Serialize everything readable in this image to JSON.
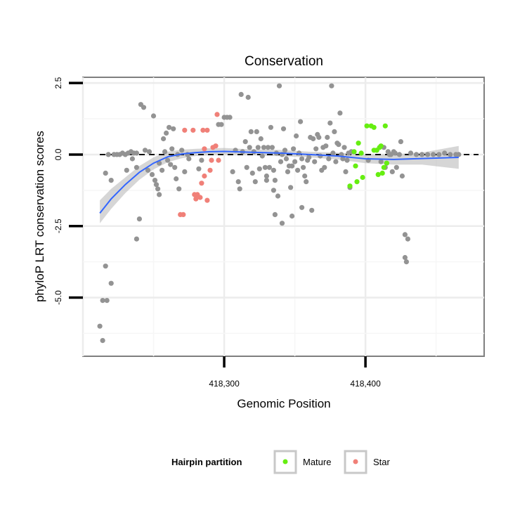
{
  "chart_data": {
    "type": "scatter",
    "title": "Conservation",
    "xlabel": "Genomic Position",
    "ylabel": "phyloP LRT conservation scores",
    "xlim": [
      418200,
      418484
    ],
    "ylim": [
      -7.05,
      2.7
    ],
    "x_ticks": [
      418300,
      418400
    ],
    "x_tick_labels": [
      "418,300",
      "418,400"
    ],
    "y_ticks": [
      2.5,
      0.0,
      -2.5,
      -5.0
    ],
    "y_tick_labels": [
      "2.5",
      "0.0",
      "-2.5",
      "-5.0"
    ],
    "grid": true,
    "reference_line": {
      "y": 0,
      "style": "dashed",
      "color": "#000000"
    },
    "legend": {
      "title": "Hairpin partition",
      "position": "bottom",
      "entries": [
        {
          "label": "Mature",
          "color": "#66EE11"
        },
        {
          "label": "Star",
          "color": "#F08078"
        }
      ]
    },
    "colors": {
      "background": "#000000",
      "mature": "#66EE11",
      "star": "#F08078",
      "smooth": "#3366FF",
      "band": "#BBBBBB"
    },
    "series": [
      {
        "points": [
          [
            418212,
            -6.0
          ],
          [
            418214,
            -6.5
          ],
          [
            418214,
            -5.1
          ],
          [
            418217,
            -5.1
          ],
          [
            418216,
            -3.9
          ],
          [
            418220,
            -4.5
          ],
          [
            418216,
            -0.65
          ],
          [
            418218,
            0.0
          ],
          [
            418220,
            -0.9
          ],
          [
            418222,
            0.0
          ],
          [
            418224,
            0.0
          ],
          [
            418226,
            0.0
          ],
          [
            418228,
            0.05
          ],
          [
            418230,
            0.0
          ],
          [
            418232,
            0.05
          ],
          [
            418234,
            0.1
          ],
          [
            418236,
            0.05
          ],
          [
            418238,
            0.05
          ],
          [
            418231,
            -0.55
          ],
          [
            418235,
            -0.15
          ],
          [
            418238,
            -0.45
          ],
          [
            418238,
            -2.95
          ],
          [
            418240,
            -2.25
          ],
          [
            418241,
            1.75
          ],
          [
            418243,
            1.65
          ],
          [
            418244,
            0.15
          ],
          [
            418246,
            -0.55
          ],
          [
            418247,
            0.1
          ],
          [
            418249,
            -0.7
          ],
          [
            418250,
            1.35
          ],
          [
            418251,
            -0.9
          ],
          [
            418252,
            -1.05
          ],
          [
            418253,
            -1.2
          ],
          [
            418254,
            -1.4
          ],
          [
            418254,
            -0.3
          ],
          [
            418256,
            -0.55
          ],
          [
            418257,
            0.55
          ],
          [
            418258,
            0.1
          ],
          [
            418259,
            0.75
          ],
          [
            418260,
            -0.2
          ],
          [
            418261,
            0.95
          ],
          [
            418262,
            -0.35
          ],
          [
            418263,
            0.2
          ],
          [
            418264,
            0.9
          ],
          [
            418265,
            -0.45
          ],
          [
            418266,
            -0.85
          ],
          [
            418267,
            0.0
          ],
          [
            418268,
            -1.2
          ],
          [
            418270,
            0.15
          ],
          [
            418272,
            -0.6
          ],
          [
            418274,
            0.0
          ],
          [
            418275,
            -0.15
          ],
          [
            418282,
            -0.5
          ],
          [
            418284,
            -0.2
          ],
          [
            418296,
            1.05
          ],
          [
            418298,
            1.05
          ],
          [
            418300,
            1.3
          ],
          [
            418302,
            1.3
          ],
          [
            418304,
            1.3
          ],
          [
            418306,
            -0.6
          ],
          [
            418308,
            0.15
          ],
          [
            418310,
            -0.95
          ],
          [
            418311,
            -1.2
          ],
          [
            418312,
            2.1
          ],
          [
            418313,
            0.1
          ],
          [
            418315,
            0.45
          ],
          [
            418316,
            -0.45
          ],
          [
            418317,
            2.0
          ],
          [
            418318,
            0.25
          ],
          [
            418319,
            0.8
          ],
          [
            418320,
            -0.65
          ],
          [
            418321,
            0.1
          ],
          [
            418322,
            -0.95
          ],
          [
            418323,
            0.8
          ],
          [
            418324,
            0.25
          ],
          [
            418325,
            -0.5
          ],
          [
            418326,
            0.55
          ],
          [
            418327,
            -0.05
          ],
          [
            418328,
            0.25
          ],
          [
            418329,
            -0.45
          ],
          [
            418330,
            -0.75
          ],
          [
            418331,
            0.25
          ],
          [
            418332,
            -0.45
          ],
          [
            418333,
            0.95
          ],
          [
            418334,
            0.25
          ],
          [
            418335,
            -0.55
          ],
          [
            418336,
            -0.9
          ],
          [
            418337,
            0.05
          ],
          [
            418338,
            -1.45
          ],
          [
            418339,
            2.4
          ],
          [
            418340,
            -0.25
          ],
          [
            418341,
            0.0
          ],
          [
            418342,
            0.9
          ],
          [
            418343,
            0.15
          ],
          [
            418344,
            -0.15
          ],
          [
            418345,
            -0.6
          ],
          [
            418346,
            -0.4
          ],
          [
            418347,
            -1.15
          ],
          [
            418348,
            -0.4
          ],
          [
            418349,
            0.2
          ],
          [
            418350,
            -0.25
          ],
          [
            418351,
            0.65
          ],
          [
            418352,
            -0.55
          ],
          [
            418353,
            0.05
          ],
          [
            418354,
            1.15
          ],
          [
            418355,
            -0.15
          ],
          [
            418356,
            -0.45
          ],
          [
            418357,
            -0.75
          ],
          [
            418358,
            -0.95
          ],
          [
            418359,
            -0.2
          ],
          [
            418360,
            -0.1
          ],
          [
            418361,
            0.6
          ],
          [
            418362,
            -1.95
          ],
          [
            418363,
            0.55
          ],
          [
            418364,
            -0.25
          ],
          [
            418365,
            0.2
          ],
          [
            418366,
            0.7
          ],
          [
            418367,
            0.6
          ],
          [
            418368,
            -0.05
          ],
          [
            418369,
            -0.55
          ],
          [
            418370,
            0.25
          ],
          [
            418371,
            -0.45
          ],
          [
            418372,
            0.3
          ],
          [
            418373,
            0.6
          ],
          [
            418374,
            -0.15
          ],
          [
            418375,
            1.1
          ],
          [
            418376,
            2.4
          ],
          [
            418377,
            0.05
          ],
          [
            418378,
            0.8
          ],
          [
            418379,
            -0.25
          ],
          [
            418380,
            0.4
          ],
          [
            418381,
            0.35
          ],
          [
            418382,
            1.45
          ],
          [
            418383,
            0.0
          ],
          [
            418384,
            -0.15
          ],
          [
            418385,
            0.25
          ],
          [
            418386,
            -0.6
          ],
          [
            418387,
            -0.2
          ],
          [
            418388,
            0.05
          ],
          [
            418389,
            -1.15
          ],
          [
            418390,
            0.1
          ],
          [
            418335,
            -1.25
          ],
          [
            418336,
            -2.1
          ],
          [
            418341,
            -2.4
          ],
          [
            418355,
            -1.85
          ],
          [
            418330,
            -0.9
          ],
          [
            418348,
            -2.15
          ],
          [
            418402,
            -0.2
          ],
          [
            418408,
            0.15
          ],
          [
            418411,
            -0.25
          ],
          [
            418413,
            0.25
          ],
          [
            418414,
            -0.45
          ],
          [
            418415,
            -0.3
          ],
          [
            418416,
            0.1
          ],
          [
            418417,
            0.0
          ],
          [
            418418,
            0.0
          ],
          [
            418419,
            -0.6
          ],
          [
            418420,
            0.1
          ],
          [
            418421,
            0.05
          ],
          [
            418422,
            -0.45
          ],
          [
            418424,
            0.0
          ],
          [
            418425,
            0.45
          ],
          [
            418426,
            -0.75
          ],
          [
            418428,
            -2.8
          ],
          [
            418428,
            -3.6
          ],
          [
            418429,
            -3.75
          ],
          [
            418430,
            -2.95
          ],
          [
            418432,
            0.05
          ],
          [
            418436,
            0.0
          ],
          [
            418440,
            0.0
          ],
          [
            418444,
            0.0
          ],
          [
            418448,
            0.0
          ],
          [
            418452,
            0.0
          ],
          [
            418456,
            0.05
          ],
          [
            418460,
            0.0
          ],
          [
            418464,
            0.0
          ],
          [
            418466,
            0.0
          ]
        ]
      },
      {
        "name": "Star",
        "points": [
          [
            418269,
            -2.1
          ],
          [
            418271,
            -2.1
          ],
          [
            418272,
            0.85
          ],
          [
            418278,
            0.85
          ],
          [
            418279,
            -1.4
          ],
          [
            418280,
            -1.55
          ],
          [
            418281,
            -1.4
          ],
          [
            418283,
            -1.5
          ],
          [
            418284,
            -1.0
          ],
          [
            418285,
            0.85
          ],
          [
            418286,
            -0.75
          ],
          [
            418286,
            0.2
          ],
          [
            418288,
            0.85
          ],
          [
            418288,
            -1.6
          ],
          [
            418290,
            -0.55
          ],
          [
            418291,
            -0.2
          ],
          [
            418292,
            0.25
          ],
          [
            418294,
            0.3
          ],
          [
            418295,
            1.4
          ],
          [
            418296,
            -0.2
          ]
        ]
      },
      {
        "name": "Mature",
        "points": [
          [
            418389,
            -1.1
          ],
          [
            418392,
            0.1
          ],
          [
            418393,
            -0.4
          ],
          [
            418394,
            -0.95
          ],
          [
            418395,
            0.4
          ],
          [
            418397,
            0.05
          ],
          [
            418398,
            -0.8
          ],
          [
            418401,
            1.0
          ],
          [
            418404,
            1.0
          ],
          [
            418406,
            0.95
          ],
          [
            418406,
            0.15
          ],
          [
            418408,
            0.15
          ],
          [
            418409,
            -0.7
          ],
          [
            418410,
            0.25
          ],
          [
            418411,
            0.3
          ],
          [
            418412,
            -0.65
          ],
          [
            418413,
            -0.45
          ],
          [
            418414,
            1.0
          ],
          [
            418415,
            -0.3
          ]
        ]
      }
    ],
    "smooth_curve": [
      [
        418212,
        -2.05
      ],
      [
        418220,
        -1.55
      ],
      [
        418230,
        -1.05
      ],
      [
        418240,
        -0.62
      ],
      [
        418250,
        -0.3
      ],
      [
        418260,
        -0.08
      ],
      [
        418270,
        0.02
      ],
      [
        418280,
        0.07
      ],
      [
        418290,
        0.1
      ],
      [
        418300,
        0.11
      ],
      [
        418320,
        0.08
      ],
      [
        418340,
        0.05
      ],
      [
        418360,
        0.0
      ],
      [
        418380,
        -0.05
      ],
      [
        418400,
        -0.15
      ],
      [
        418420,
        -0.17
      ],
      [
        418440,
        -0.14
      ],
      [
        418466,
        -0.1
      ]
    ],
    "smooth_band": [
      [
        418212,
        -2.4,
        -1.6
      ],
      [
        418220,
        -1.9,
        -1.2
      ],
      [
        418230,
        -1.35,
        -0.8
      ],
      [
        418240,
        -0.88,
        -0.4
      ],
      [
        418250,
        -0.52,
        -0.1
      ],
      [
        418260,
        -0.27,
        0.1
      ],
      [
        418270,
        -0.13,
        0.17
      ],
      [
        418280,
        -0.05,
        0.2
      ],
      [
        418290,
        -0.02,
        0.22
      ],
      [
        418300,
        -0.01,
        0.23
      ],
      [
        418320,
        -0.02,
        0.18
      ],
      [
        418340,
        -0.06,
        0.16
      ],
      [
        418360,
        -0.1,
        0.1
      ],
      [
        418380,
        -0.17,
        0.07
      ],
      [
        418400,
        -0.3,
        0.0
      ],
      [
        418420,
        -0.35,
        0.01
      ],
      [
        418440,
        -0.35,
        0.07
      ],
      [
        418466,
        -0.5,
        0.3
      ]
    ]
  }
}
